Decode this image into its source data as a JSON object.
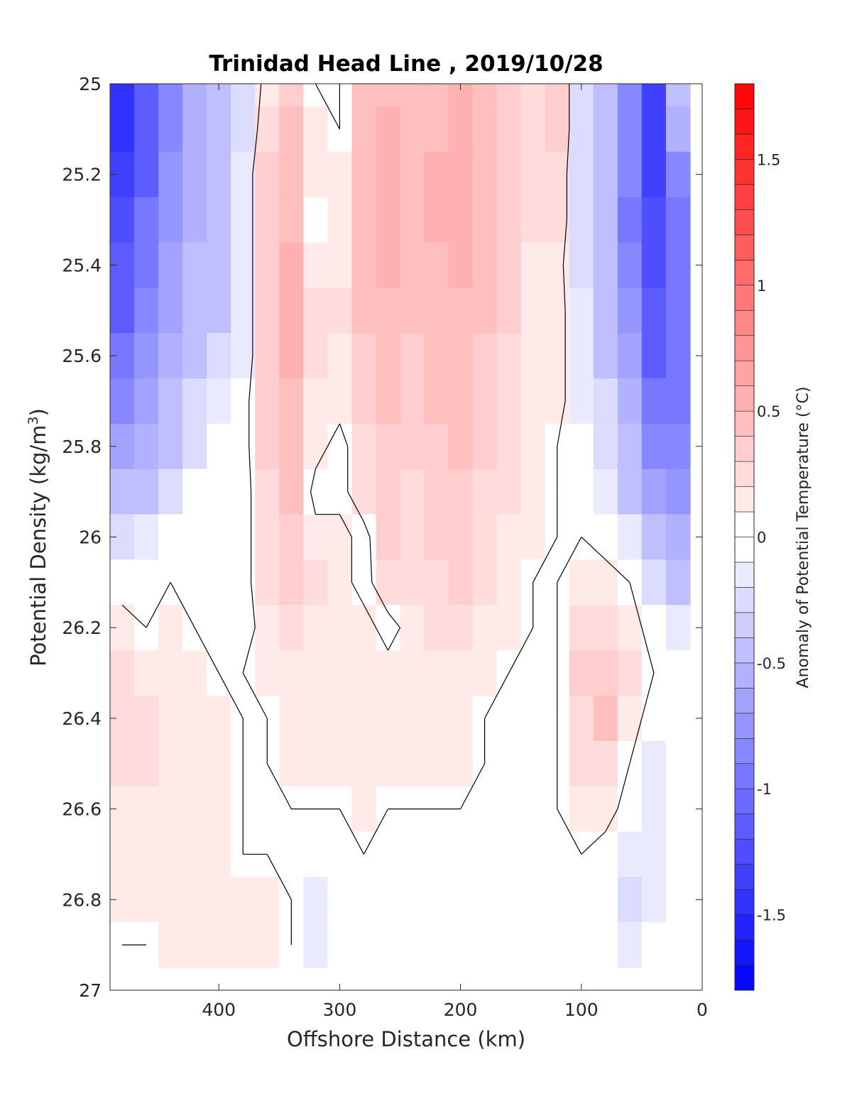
{
  "chart_data": {
    "type": "heatmap",
    "title": "Trinidad Head Line , 2019/10/28",
    "xlabel": "Offshore Distance (km)",
    "ylabel": "Potential Density (kg/m",
    "ylabel_superscript": "3",
    "ylabel_close": ")",
    "colorbar_label": "Anomaly of Potential Temperature (°C)",
    "xlim": [
      490,
      0
    ],
    "ylim": [
      25,
      27
    ],
    "x_reversed": true,
    "y_reversed": true,
    "x_ticks": [
      400,
      300,
      200,
      100,
      0
    ],
    "y_ticks": [
      "25",
      "25.2",
      "25.4",
      "25.6",
      "25.8",
      "26",
      "26.2",
      "26.4",
      "26.6",
      "26.8",
      "27"
    ],
    "colorbar_range": [
      -1.8,
      1.8
    ],
    "colorbar_ticks": [
      "1.5",
      "1",
      "0.5",
      "0",
      "-0.5",
      "-1",
      "-1.5"
    ],
    "colorbar_tick_values": [
      1.5,
      1,
      0.5,
      0,
      -0.5,
      -1,
      -1.5
    ],
    "colorbar_levels": 36,
    "colors": {
      "negative": "#0000ff",
      "neutral": "#ffffff",
      "positive": "#ff0000",
      "contour": "#000000"
    },
    "grid": false,
    "x": [
      480,
      460,
      440,
      420,
      400,
      380,
      360,
      340,
      320,
      300,
      280,
      260,
      240,
      220,
      200,
      180,
      160,
      140,
      120,
      100,
      80,
      60,
      40,
      20
    ],
    "y": [
      25.0,
      25.1,
      25.2,
      25.3,
      25.4,
      25.5,
      25.6,
      25.7,
      25.8,
      25.9,
      26.0,
      26.1,
      26.2,
      26.3,
      26.4,
      26.5,
      26.6,
      26.7,
      26.8,
      26.9
    ],
    "z": [
      [
        -1.5,
        -1.2,
        -0.9,
        -0.6,
        -0.4,
        -0.3,
        0.1,
        0.3,
        0.0,
        0.0,
        0.4,
        0.5,
        0.4,
        0.5,
        0.6,
        0.5,
        0.3,
        0.2,
        0.3,
        -0.3,
        -0.5,
        -0.9,
        -1.4,
        -0.5
      ],
      [
        -1.5,
        -1.2,
        -0.9,
        -0.6,
        -0.5,
        -0.3,
        0.2,
        0.4,
        0.1,
        0.0,
        0.4,
        0.6,
        0.5,
        0.5,
        0.6,
        0.5,
        0.3,
        0.2,
        0.3,
        -0.3,
        -0.5,
        -0.9,
        -1.4,
        -0.6
      ],
      [
        -1.4,
        -1.1,
        -0.8,
        -0.6,
        -0.5,
        -0.2,
        0.3,
        0.4,
        0.1,
        0.1,
        0.5,
        0.6,
        0.5,
        0.6,
        0.6,
        0.5,
        0.3,
        0.2,
        0.2,
        -0.3,
        -0.5,
        -0.9,
        -1.4,
        -0.9
      ],
      [
        -1.3,
        -1.0,
        -0.8,
        -0.6,
        -0.5,
        -0.2,
        0.3,
        0.5,
        0.0,
        0.1,
        0.5,
        0.6,
        0.5,
        0.6,
        0.6,
        0.5,
        0.3,
        0.2,
        0.2,
        -0.3,
        -0.5,
        -1.0,
        -1.3,
        -1.0
      ],
      [
        -1.2,
        -1.0,
        -0.7,
        -0.5,
        -0.4,
        -0.2,
        0.3,
        0.6,
        0.1,
        0.1,
        0.4,
        0.6,
        0.5,
        0.5,
        0.6,
        0.5,
        0.3,
        0.1,
        0.1,
        -0.3,
        -0.5,
        -0.9,
        -1.3,
        -1.0
      ],
      [
        -1.1,
        -0.9,
        -0.7,
        -0.5,
        -0.4,
        -0.2,
        0.3,
        0.6,
        0.2,
        0.2,
        0.4,
        0.5,
        0.4,
        0.5,
        0.5,
        0.4,
        0.3,
        0.1,
        0.1,
        -0.2,
        -0.4,
        -0.8,
        -1.2,
        -1.0
      ],
      [
        -1.0,
        -0.8,
        -0.6,
        -0.4,
        -0.3,
        -0.2,
        0.3,
        0.6,
        0.2,
        0.1,
        0.3,
        0.4,
        0.3,
        0.4,
        0.4,
        0.3,
        0.2,
        0.1,
        0.1,
        -0.2,
        -0.4,
        -0.7,
        -1.1,
        -1.0
      ],
      [
        -0.9,
        -0.7,
        -0.5,
        -0.3,
        -0.2,
        -0.1,
        0.3,
        0.5,
        0.1,
        0.1,
        0.3,
        0.4,
        0.3,
        0.4,
        0.4,
        0.3,
        0.2,
        0.1,
        0.1,
        -0.2,
        -0.3,
        -0.6,
        -1.0,
        -1.0
      ],
      [
        -0.7,
        -0.6,
        -0.4,
        -0.3,
        -0.1,
        -0.1,
        0.3,
        0.5,
        0.1,
        -0.1,
        0.2,
        0.3,
        0.3,
        0.3,
        0.4,
        0.3,
        0.2,
        0.1,
        0.0,
        -0.1,
        -0.3,
        -0.5,
        -0.9,
        -0.9
      ],
      [
        -0.5,
        -0.4,
        -0.3,
        -0.1,
        -0.1,
        -0.1,
        0.2,
        0.4,
        -0.1,
        -0.1,
        0.2,
        0.3,
        0.2,
        0.3,
        0.3,
        0.2,
        0.2,
        0.1,
        0.0,
        -0.1,
        -0.2,
        -0.4,
        -0.7,
        -0.8
      ],
      [
        -0.3,
        -0.2,
        -0.1,
        0.0,
        -0.1,
        -0.1,
        0.2,
        0.3,
        0.1,
        0.1,
        -0.1,
        0.3,
        0.2,
        0.3,
        0.3,
        0.2,
        0.1,
        0.1,
        0.0,
        0.0,
        -0.1,
        -0.2,
        -0.5,
        -0.6
      ],
      [
        -0.1,
        0.0,
        0.0,
        0.0,
        0.0,
        -0.1,
        0.2,
        0.3,
        0.2,
        0.1,
        -0.1,
        0.2,
        0.2,
        0.2,
        0.3,
        0.2,
        0.1,
        0.0,
        0.0,
        0.1,
        0.1,
        0.0,
        -0.3,
        -0.4
      ],
      [
        0.1,
        0.0,
        0.1,
        0.0,
        0.0,
        -0.1,
        0.1,
        0.2,
        0.1,
        0.1,
        0.1,
        -0.1,
        0.1,
        0.2,
        0.2,
        0.1,
        0.1,
        0.0,
        0.0,
        0.2,
        0.2,
        0.1,
        -0.1,
        -0.2
      ],
      [
        0.2,
        0.1,
        0.1,
        0.1,
        0.0,
        0.0,
        0.1,
        0.1,
        0.1,
        0.1,
        0.1,
        0.1,
        0.1,
        0.1,
        0.1,
        0.1,
        0.0,
        0.0,
        0.0,
        0.3,
        0.3,
        0.2,
        0.0,
        -0.1
      ],
      [
        0.2,
        0.2,
        0.1,
        0.1,
        0.1,
        0.0,
        0.0,
        0.1,
        0.1,
        0.1,
        0.1,
        0.1,
        0.1,
        0.1,
        0.1,
        0.0,
        0.0,
        0.0,
        0.0,
        0.2,
        0.4,
        0.1,
        -0.1,
        -0.1
      ],
      [
        0.2,
        0.2,
        0.1,
        0.1,
        0.1,
        0.0,
        0.0,
        0.1,
        0.1,
        0.1,
        0.1,
        0.1,
        0.1,
        0.1,
        0.1,
        0.0,
        0.0,
        0.0,
        0.0,
        0.2,
        0.2,
        0.0,
        -0.2,
        -0.1
      ],
      [
        0.1,
        0.1,
        0.1,
        0.1,
        0.1,
        0.0,
        0.0,
        0.0,
        0.0,
        0.0,
        0.1,
        0.0,
        0.0,
        0.0,
        0.0,
        0.0,
        0.0,
        0.0,
        0.0,
        0.1,
        0.1,
        -0.1,
        -0.2,
        -0.1
      ],
      [
        0.1,
        0.1,
        0.1,
        0.1,
        0.1,
        0.0,
        0.0,
        0.0,
        -0.1,
        0.0,
        0.0,
        0.0,
        0.0,
        0.0,
        0.0,
        0.0,
        0.0,
        0.0,
        0.0,
        0.0,
        -0.1,
        -0.2,
        -0.2,
        0.0
      ],
      [
        0.1,
        0.1,
        0.1,
        0.1,
        0.1,
        0.1,
        0.1,
        0.0,
        -0.2,
        -0.1,
        0.0,
        0.0,
        0.0,
        0.0,
        0.0,
        0.0,
        0.0,
        0.0,
        0.0,
        0.0,
        -0.1,
        -0.3,
        -0.2,
        0.0
      ],
      [
        0.0,
        0.0,
        0.1,
        0.1,
        0.1,
        0.1,
        0.1,
        0.0,
        -0.2,
        -0.1,
        0.0,
        0.0,
        0.0,
        0.0,
        0.0,
        0.0,
        0.0,
        -0.1,
        0.0,
        0.0,
        -0.1,
        -0.2,
        -0.1,
        0.0
      ]
    ]
  }
}
